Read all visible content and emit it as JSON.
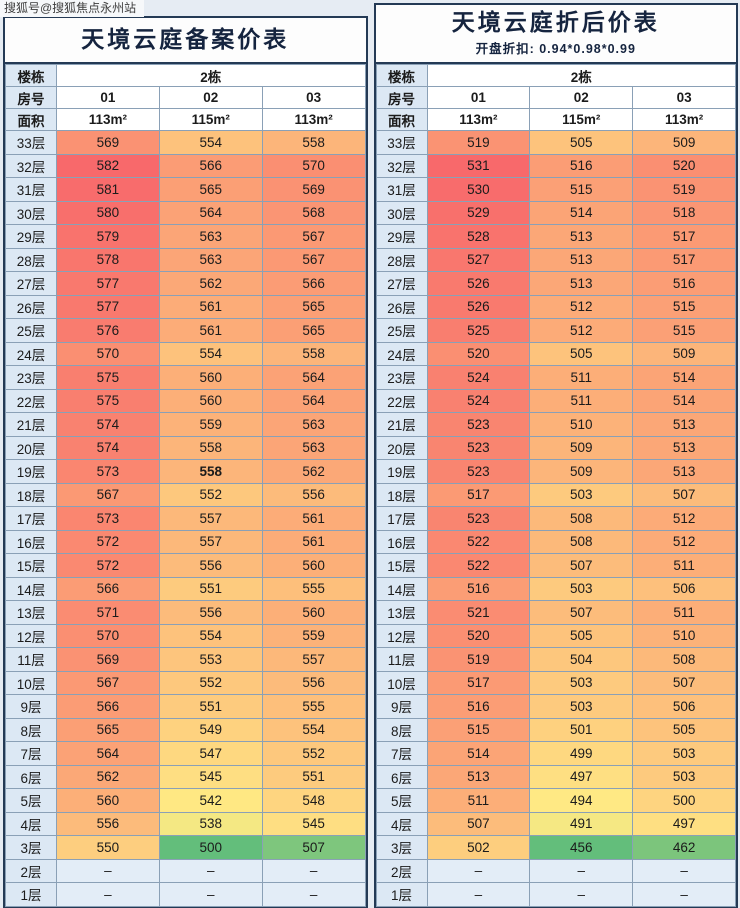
{
  "watermark": "搜狐号@搜狐焦点永州站",
  "colors": {
    "page_bg": "#e6ecf3",
    "border_dark": "#243a55",
    "grid_line": "#8aa0b6",
    "label_bg": "#dce8f4",
    "header_bg": "#ffffff",
    "empty_bg": "#e3edf7",
    "title_color": "#15243f",
    "scale_low": "#63be7b",
    "scale_mid": "#ffeb84",
    "scale_high": "#f8696b"
  },
  "tables": [
    {
      "title": "天境云庭备案价表",
      "subtitle": "",
      "building_label": "楼栋",
      "building_value": "2栋",
      "room_label": "房号",
      "rooms": [
        "01",
        "02",
        "03"
      ],
      "area_label": "面积",
      "areas": [
        "113m²",
        "115m²",
        "113m²"
      ],
      "floors": [
        "33层",
        "32层",
        "31层",
        "30层",
        "29层",
        "28层",
        "27层",
        "26层",
        "25层",
        "24层",
        "23层",
        "22层",
        "21层",
        "20层",
        "19层",
        "18层",
        "17层",
        "16层",
        "15层",
        "14层",
        "13层",
        "12层",
        "11层",
        "10层",
        "9层",
        "8层",
        "7层",
        "6层",
        "5层",
        "4层",
        "3层",
        "2层",
        "1层"
      ],
      "values": [
        [
          569,
          554,
          558
        ],
        [
          582,
          566,
          570
        ],
        [
          581,
          565,
          569
        ],
        [
          580,
          564,
          568
        ],
        [
          579,
          563,
          567
        ],
        [
          578,
          563,
          567
        ],
        [
          577,
          562,
          566
        ],
        [
          577,
          561,
          565
        ],
        [
          576,
          561,
          565
        ],
        [
          570,
          554,
          558
        ],
        [
          575,
          560,
          564
        ],
        [
          575,
          560,
          564
        ],
        [
          574,
          559,
          563
        ],
        [
          574,
          558,
          563
        ],
        [
          573,
          558,
          562
        ],
        [
          567,
          552,
          556
        ],
        [
          573,
          557,
          561
        ],
        [
          572,
          557,
          561
        ],
        [
          572,
          556,
          560
        ],
        [
          566,
          551,
          555
        ],
        [
          571,
          556,
          560
        ],
        [
          570,
          554,
          559
        ],
        [
          569,
          553,
          557
        ],
        [
          567,
          552,
          556
        ],
        [
          566,
          551,
          555
        ],
        [
          565,
          549,
          554
        ],
        [
          564,
          547,
          552
        ],
        [
          562,
          545,
          551
        ],
        [
          560,
          542,
          548
        ],
        [
          556,
          538,
          545
        ],
        [
          550,
          500,
          507
        ],
        [
          "–",
          "–",
          "–"
        ],
        [
          "–",
          "–",
          "–"
        ]
      ],
      "scale": {
        "min": 500,
        "max": 582
      },
      "bold_cell": {
        "row": 14,
        "col": 1
      },
      "empty_marker": "–"
    },
    {
      "title": "天境云庭折后价表",
      "subtitle": "开盘折扣: 0.94*0.98*0.99",
      "building_label": "楼栋",
      "building_value": "2栋",
      "room_label": "房号",
      "rooms": [
        "01",
        "02",
        "03"
      ],
      "area_label": "面积",
      "areas": [
        "113m²",
        "115m²",
        "113m²"
      ],
      "floors": [
        "33层",
        "32层",
        "31层",
        "30层",
        "29层",
        "28层",
        "27层",
        "26层",
        "25层",
        "24层",
        "23层",
        "22层",
        "21层",
        "20层",
        "19层",
        "18层",
        "17层",
        "16层",
        "15层",
        "14层",
        "13层",
        "12层",
        "11层",
        "10层",
        "9层",
        "8层",
        "7层",
        "6层",
        "5层",
        "4层",
        "3层",
        "2层",
        "1层"
      ],
      "values": [
        [
          519,
          505,
          509
        ],
        [
          531,
          516,
          520
        ],
        [
          530,
          515,
          519
        ],
        [
          529,
          514,
          518
        ],
        [
          528,
          513,
          517
        ],
        [
          527,
          513,
          517
        ],
        [
          526,
          513,
          516
        ],
        [
          526,
          512,
          515
        ],
        [
          525,
          512,
          515
        ],
        [
          520,
          505,
          509
        ],
        [
          524,
          511,
          514
        ],
        [
          524,
          511,
          514
        ],
        [
          523,
          510,
          513
        ],
        [
          523,
          509,
          513
        ],
        [
          523,
          509,
          513
        ],
        [
          517,
          503,
          507
        ],
        [
          523,
          508,
          512
        ],
        [
          522,
          508,
          512
        ],
        [
          522,
          507,
          511
        ],
        [
          516,
          503,
          506
        ],
        [
          521,
          507,
          511
        ],
        [
          520,
          505,
          510
        ],
        [
          519,
          504,
          508
        ],
        [
          517,
          503,
          507
        ],
        [
          516,
          503,
          506
        ],
        [
          515,
          501,
          505
        ],
        [
          514,
          499,
          503
        ],
        [
          513,
          497,
          503
        ],
        [
          511,
          494,
          500
        ],
        [
          507,
          491,
          497
        ],
        [
          502,
          456,
          462
        ],
        [
          "–",
          "–",
          "–"
        ],
        [
          "–",
          "–",
          "–"
        ]
      ],
      "scale": {
        "min": 456,
        "max": 531
      },
      "empty_marker": "–"
    }
  ]
}
